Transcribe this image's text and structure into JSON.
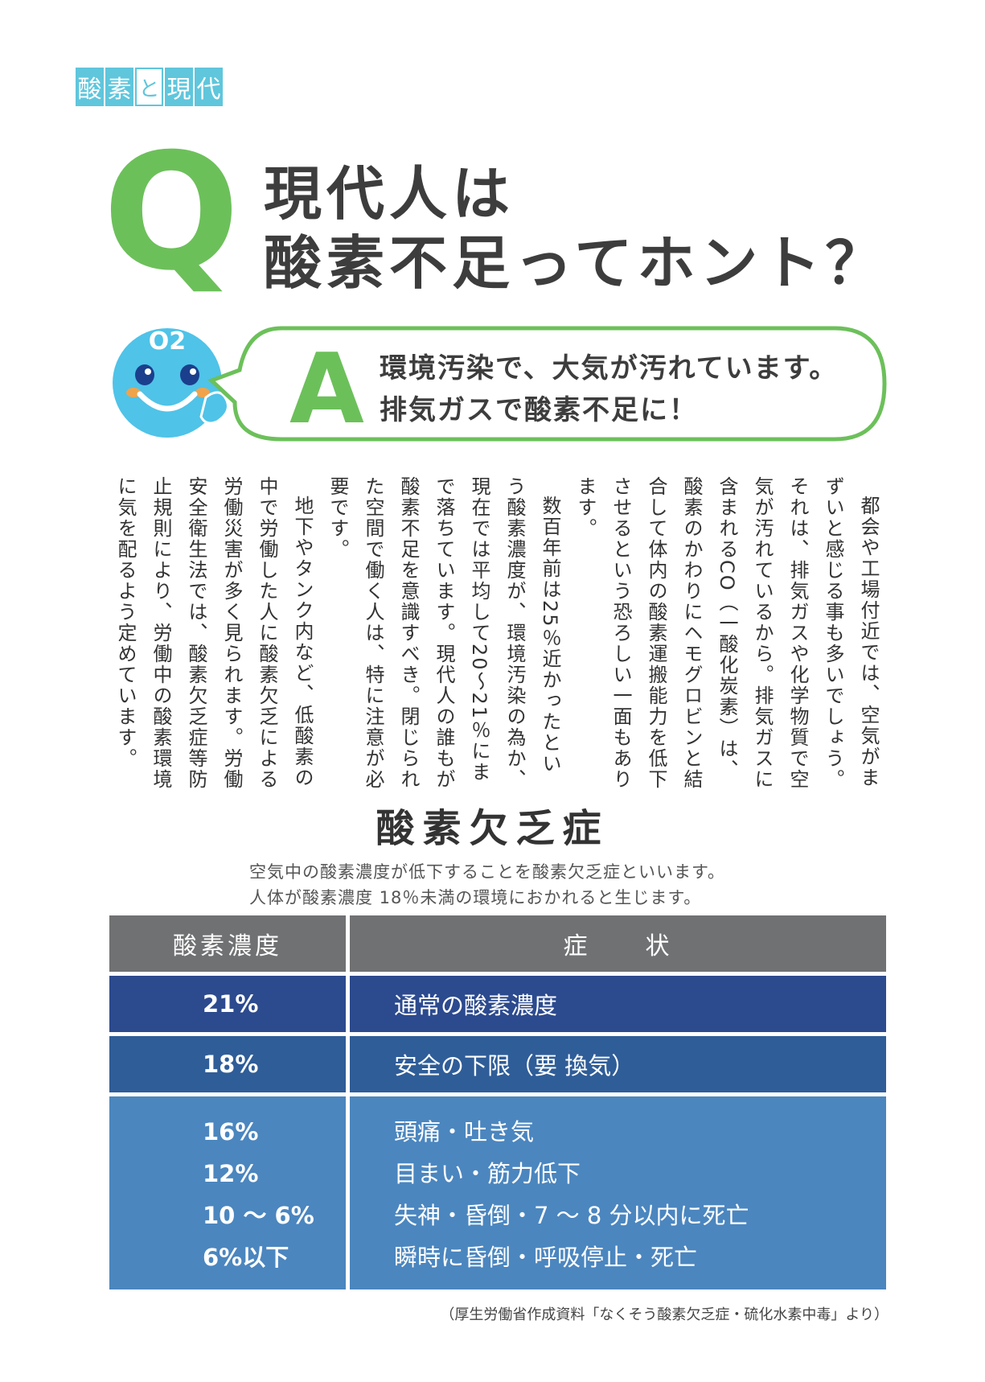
{
  "tag": {
    "chars": [
      "酸",
      "素",
      "と",
      "現",
      "代"
    ]
  },
  "question": {
    "letter": "Q",
    "line1": "現代人は",
    "line2": "酸素不足ってホント？"
  },
  "answer": {
    "mascot_label": "O2",
    "letter": "A",
    "line1": "環境汚染で、大気が汚れています。",
    "line2": "排気ガスで酸素不足に！"
  },
  "body_paragraphs": [
    "都会や工場付近では、空気がまずいと感じる事も多いでしょう。それは、排気ガスや化学物質で空気が汚れているから。排気ガスに含まれるCO（一酸化炭素）は、酸素のかわりにヘモグロビンと結合して体内の酸素運搬能力を低下させるという恐ろしい一面もあります。",
    "数百年前は25％近かったという酸素濃度が、環境汚染の為か、現在では平均して20～21％にまで落ちています。現代人の誰もが酸素不足を意識すべき。閉じられた空間で働く人は、特に注意が必要です。",
    "地下やタンク内など、低酸素の中で労働した人に酸素欠乏による労働災害が多く見られます。労働安全衛生法では、酸素欠乏症等防止規則により、労働中の酸素環境に気を配るよう定めています。"
  ],
  "section": {
    "title": "酸素欠乏症",
    "intro_line1": "空気中の酸素濃度が低下することを酸素欠乏症といいます。",
    "intro_line2": "人体が酸素濃度 18％未満の環境におかれると生じます。"
  },
  "table": {
    "col1": "酸素濃度",
    "col2": "症　　状",
    "rows": [
      {
        "pct": "21%",
        "symptom": "通常の酸素濃度"
      },
      {
        "pct": "18%",
        "symptom": "安全の下限（要 換気）"
      },
      {
        "pct": "16%",
        "symptom": "頭痛・吐き気"
      },
      {
        "pct": "12%",
        "symptom": "目まい・筋力低下"
      },
      {
        "pct": "10 ～ 6%",
        "symptom": "失神・昏倒・7 ～ 8 分以内に死亡"
      },
      {
        "pct": "6%以下",
        "symptom": "瞬時に昏倒・呼吸停止・死亡"
      }
    ],
    "colors": {
      "header": "#707173",
      "row21": "#2c4a8e",
      "row18": "#2f5d98",
      "rowLow": "#4b86bf"
    }
  },
  "source": "（厚生労働省作成資料「なくそう酸素欠乏症・硫化水素中毒」より）",
  "colors": {
    "accent_green": "#6cc05a",
    "accent_cyan": "#5fc6dc"
  }
}
